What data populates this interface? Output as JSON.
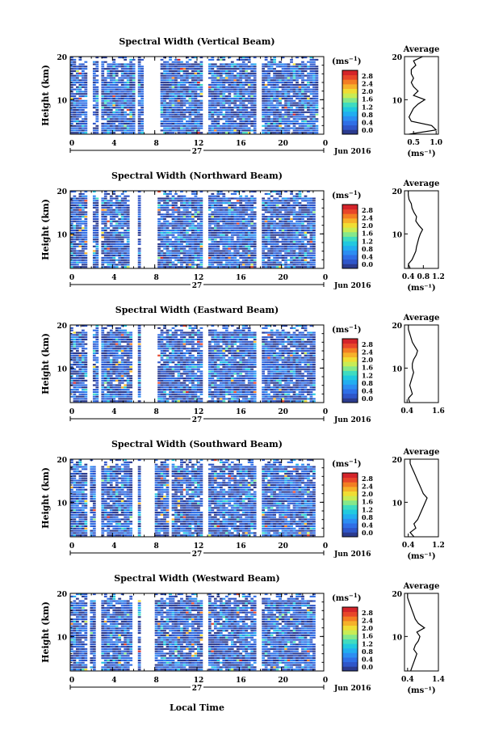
{
  "figure": {
    "date_label": "Jun 2016",
    "day_label": "27",
    "xlabel": "Local Time",
    "ylabel": "Height (km)",
    "unit_label": "(ms",
    "unit_exp": "−1",
    "avg_title": "Average"
  },
  "colors": {
    "scale": [
      "#2b3b8f",
      "#2f56c9",
      "#2f6fe6",
      "#2c8ef2",
      "#22aef0",
      "#21c9df",
      "#3fdcc0",
      "#86e88a",
      "#c8ec55",
      "#f0dd34",
      "#f6b12a",
      "#f37e23",
      "#e8462a",
      "#d4242a"
    ]
  },
  "chart_data": [
    {
      "type": "heatmap",
      "title": "Spectral Width (Vertical Beam)",
      "beam": "vertical",
      "xlim": [
        0,
        24
      ],
      "ylim": [
        2,
        20
      ],
      "xticks": [
        "0",
        "4",
        "8",
        "12",
        "16",
        "20",
        "0"
      ],
      "yticks": [
        "10",
        "20"
      ],
      "colorbar": {
        "ticks": [
          "0.0",
          "0.4",
          "0.8",
          "1.2",
          "1.6",
          "2.0",
          "2.4",
          "2.8"
        ]
      },
      "gaps": [
        [
          1.5,
          2.0
        ],
        [
          2.6,
          3.0
        ],
        [
          6.1,
          6.5
        ],
        [
          6.9,
          8.4
        ],
        [
          12.6,
          13.0
        ],
        [
          17.6,
          18.0
        ],
        [
          23.5,
          24
        ]
      ],
      "average": {
        "title": "Average",
        "xlabel": "(ms⁻¹)",
        "xlim": [
          0.3,
          1.05
        ],
        "xticks": [
          "0.5",
          "1.0"
        ],
        "yticks": [
          "10",
          "20"
        ],
        "height": [
          2,
          3,
          4,
          5,
          6,
          7,
          8,
          9,
          10,
          11,
          12,
          13,
          14,
          15,
          16,
          17,
          18,
          19,
          20
        ],
        "values": [
          0.4,
          1.0,
          0.9,
          0.45,
          0.4,
          0.45,
          0.5,
          0.6,
          0.75,
          0.5,
          0.6,
          0.5,
          0.45,
          0.5,
          0.45,
          0.45,
          0.55,
          0.5,
          0.7
        ]
      }
    },
    {
      "type": "heatmap",
      "title": "Spectral Width (Northward Beam)",
      "beam": "northward",
      "xlim": [
        0,
        24
      ],
      "ylim": [
        2,
        20
      ],
      "xticks": [
        "0",
        "4",
        "8",
        "12",
        "16",
        "20",
        "0"
      ],
      "yticks": [
        "10",
        "20"
      ],
      "colorbar": {
        "ticks": [
          "0.0",
          "0.4",
          "0.8",
          "1.2",
          "1.6",
          "2.0",
          "2.4",
          "2.8"
        ]
      },
      "gaps": [
        [
          1.5,
          2.0
        ],
        [
          2.6,
          3.0
        ],
        [
          5.7,
          6.3
        ],
        [
          6.8,
          8.2
        ],
        [
          12.6,
          13.0
        ],
        [
          17.7,
          18.0
        ],
        [
          23.1,
          24
        ]
      ],
      "average": {
        "title": "Average",
        "xlabel": "(ms⁻¹)",
        "xlim": [
          0.3,
          1.2
        ],
        "xticks": [
          "0.4",
          "0.8",
          "1.2"
        ],
        "yticks": [
          "10",
          "20"
        ],
        "height": [
          2,
          3,
          4,
          5,
          6,
          7,
          8,
          9,
          10,
          11,
          12,
          13,
          14,
          15,
          16,
          17,
          18,
          19,
          20
        ],
        "values": [
          0.45,
          0.4,
          0.5,
          0.55,
          0.6,
          0.62,
          0.65,
          0.68,
          0.72,
          0.78,
          0.68,
          0.6,
          0.62,
          0.55,
          0.5,
          0.48,
          0.42,
          0.4,
          0.4
        ]
      }
    },
    {
      "type": "heatmap",
      "title": "Spectral Width (Eastward Beam)",
      "beam": "eastward",
      "xlim": [
        0,
        24
      ],
      "ylim": [
        2,
        20
      ],
      "xticks": [
        "0",
        "4",
        "8",
        "12",
        "16",
        "20",
        "0"
      ],
      "yticks": [
        "10",
        "20"
      ],
      "colorbar": {
        "ticks": [
          "0.0",
          "0.4",
          "0.8",
          "1.2",
          "1.6",
          "2.0",
          "2.4",
          "2.8"
        ]
      },
      "gaps": [
        [
          1.5,
          2.0
        ],
        [
          2.6,
          3.0
        ],
        [
          5.9,
          6.3
        ],
        [
          6.8,
          8.2
        ],
        [
          12.6,
          13.0
        ],
        [
          17.6,
          18.0
        ],
        [
          23.1,
          24
        ]
      ],
      "average": {
        "title": "Average",
        "xlabel": "",
        "xlim": [
          0.3,
          1.6
        ],
        "xticks": [
          "0.4",
          "1.6"
        ],
        "yticks": [
          "10",
          "20"
        ],
        "height": [
          2,
          3,
          4,
          5,
          6,
          7,
          8,
          9,
          10,
          11,
          12,
          13,
          14,
          15,
          16,
          17,
          18,
          19,
          20
        ],
        "values": [
          0.5,
          0.45,
          0.6,
          0.55,
          0.5,
          0.55,
          0.6,
          0.65,
          0.6,
          0.6,
          0.65,
          0.75,
          0.8,
          0.7,
          0.6,
          0.55,
          0.5,
          0.45,
          0.45
        ]
      }
    },
    {
      "type": "heatmap",
      "title": "Spectral Width (Southward Beam)",
      "beam": "southward",
      "xlim": [
        0,
        24
      ],
      "ylim": [
        2,
        20
      ],
      "xticks": [
        "0",
        "4",
        "8",
        "12",
        "16",
        "20",
        "0"
      ],
      "yticks": [
        "10",
        "20"
      ],
      "colorbar": {
        "ticks": [
          "0.0",
          "0.4",
          "0.8",
          "1.2",
          "1.6",
          "2.0",
          "2.4",
          "2.8"
        ]
      },
      "gaps": [
        [
          1.5,
          1.9
        ],
        [
          2.5,
          2.9
        ],
        [
          5.9,
          6.3
        ],
        [
          6.8,
          8.0
        ],
        [
          9.3,
          9.5
        ],
        [
          12.6,
          13.0
        ],
        [
          17.7,
          18.0
        ],
        [
          23.1,
          24
        ]
      ],
      "average": {
        "title": "Average",
        "xlabel": "(ms⁻¹)",
        "xlim": [
          0.3,
          1.2
        ],
        "xticks": [
          "0.4",
          "1.2"
        ],
        "yticks": [
          "10",
          "20"
        ],
        "height": [
          2,
          3,
          4,
          5,
          6,
          7,
          8,
          9,
          10,
          11,
          12,
          13,
          14,
          15,
          16,
          17,
          18,
          19,
          20
        ],
        "values": [
          0.55,
          0.45,
          0.6,
          0.55,
          0.65,
          0.7,
          0.75,
          0.8,
          0.85,
          0.9,
          0.8,
          0.75,
          0.7,
          0.65,
          0.6,
          0.55,
          0.5,
          0.45,
          0.45
        ]
      }
    },
    {
      "type": "heatmap",
      "title": "Spectral Width (Westward Beam)",
      "beam": "westward",
      "xlim": [
        0,
        24
      ],
      "ylim": [
        2,
        20
      ],
      "xticks": [
        "0",
        "4",
        "8",
        "12",
        "16",
        "20",
        "0"
      ],
      "yticks": [
        "10",
        "20"
      ],
      "colorbar": {
        "ticks": [
          "0.0",
          "0.4",
          "0.8",
          "1.2",
          "1.6",
          "2.0",
          "2.4",
          "2.8"
        ]
      },
      "gaps": [
        [
          1.5,
          1.9
        ],
        [
          2.5,
          2.9
        ],
        [
          5.9,
          6.3
        ],
        [
          6.8,
          8.0
        ],
        [
          12.6,
          13.0
        ],
        [
          17.6,
          18.0
        ],
        [
          23.1,
          24
        ]
      ],
      "average": {
        "title": "Average",
        "xlabel": "(ms⁻¹)",
        "xlim": [
          0.3,
          1.4
        ],
        "xticks": [
          "0.4",
          "1.4"
        ],
        "yticks": [
          "10",
          "20"
        ],
        "height": [
          2,
          3,
          4,
          5,
          6,
          7,
          8,
          9,
          10,
          11,
          12,
          13,
          14,
          15,
          16,
          17,
          18,
          19,
          20
        ],
        "values": [
          0.5,
          0.55,
          0.6,
          0.65,
          0.7,
          0.6,
          0.65,
          0.75,
          0.8,
          0.7,
          0.95,
          0.75,
          0.65,
          0.6,
          0.55,
          0.5,
          0.45,
          0.4,
          0.4
        ]
      }
    }
  ]
}
